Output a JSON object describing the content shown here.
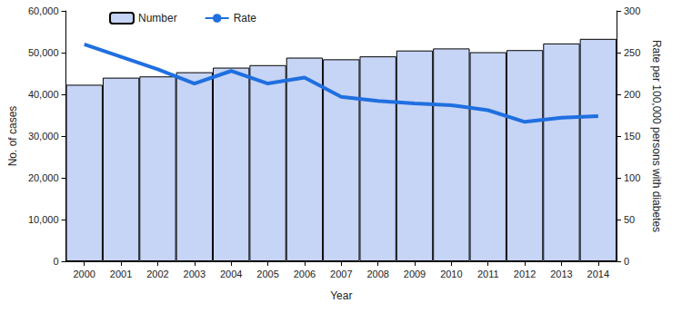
{
  "chart_data": {
    "type": "bar",
    "x_label": "Year",
    "y_label": "No. of cases",
    "y2_label": "Rate per 100,000 persons with diabetes",
    "categories": [
      "2000",
      "2001",
      "2002",
      "2003",
      "2004",
      "2005",
      "2006",
      "2007",
      "2008",
      "2009",
      "2010",
      "2011",
      "2012",
      "2013",
      "2014"
    ],
    "series": [
      {
        "name": "Number",
        "type": "bar",
        "color": "#c6d4f6",
        "values": [
          42300,
          44000,
          44300,
          45300,
          46400,
          47000,
          48800,
          48400,
          49100,
          50500,
          51000,
          50100,
          50600,
          52200,
          53300
        ]
      },
      {
        "name": "Rate",
        "type": "line",
        "axis": "y2",
        "color": "#1f6fe0",
        "values": [
          260,
          245,
          230,
          213,
          228,
          213,
          220,
          197,
          192,
          189,
          187,
          181,
          167,
          172,
          174
        ]
      }
    ],
    "ylim": [
      0,
      60000
    ],
    "yticks": [
      0,
      {
        "value": 10000,
        "label": "10,000"
      },
      {
        "value": 20000,
        "label": "20,000"
      },
      {
        "value": 30000,
        "label": "30,000"
      },
      {
        "value": 40000,
        "label": "40,000"
      },
      {
        "value": 50000,
        "label": "50,000"
      },
      {
        "value": 60000,
        "label": "60,000"
      }
    ],
    "y2lim": [
      0,
      300
    ],
    "y2ticks": [
      0,
      50,
      100,
      150,
      200,
      250,
      300
    ],
    "grid": false,
    "legend": "upper left"
  }
}
